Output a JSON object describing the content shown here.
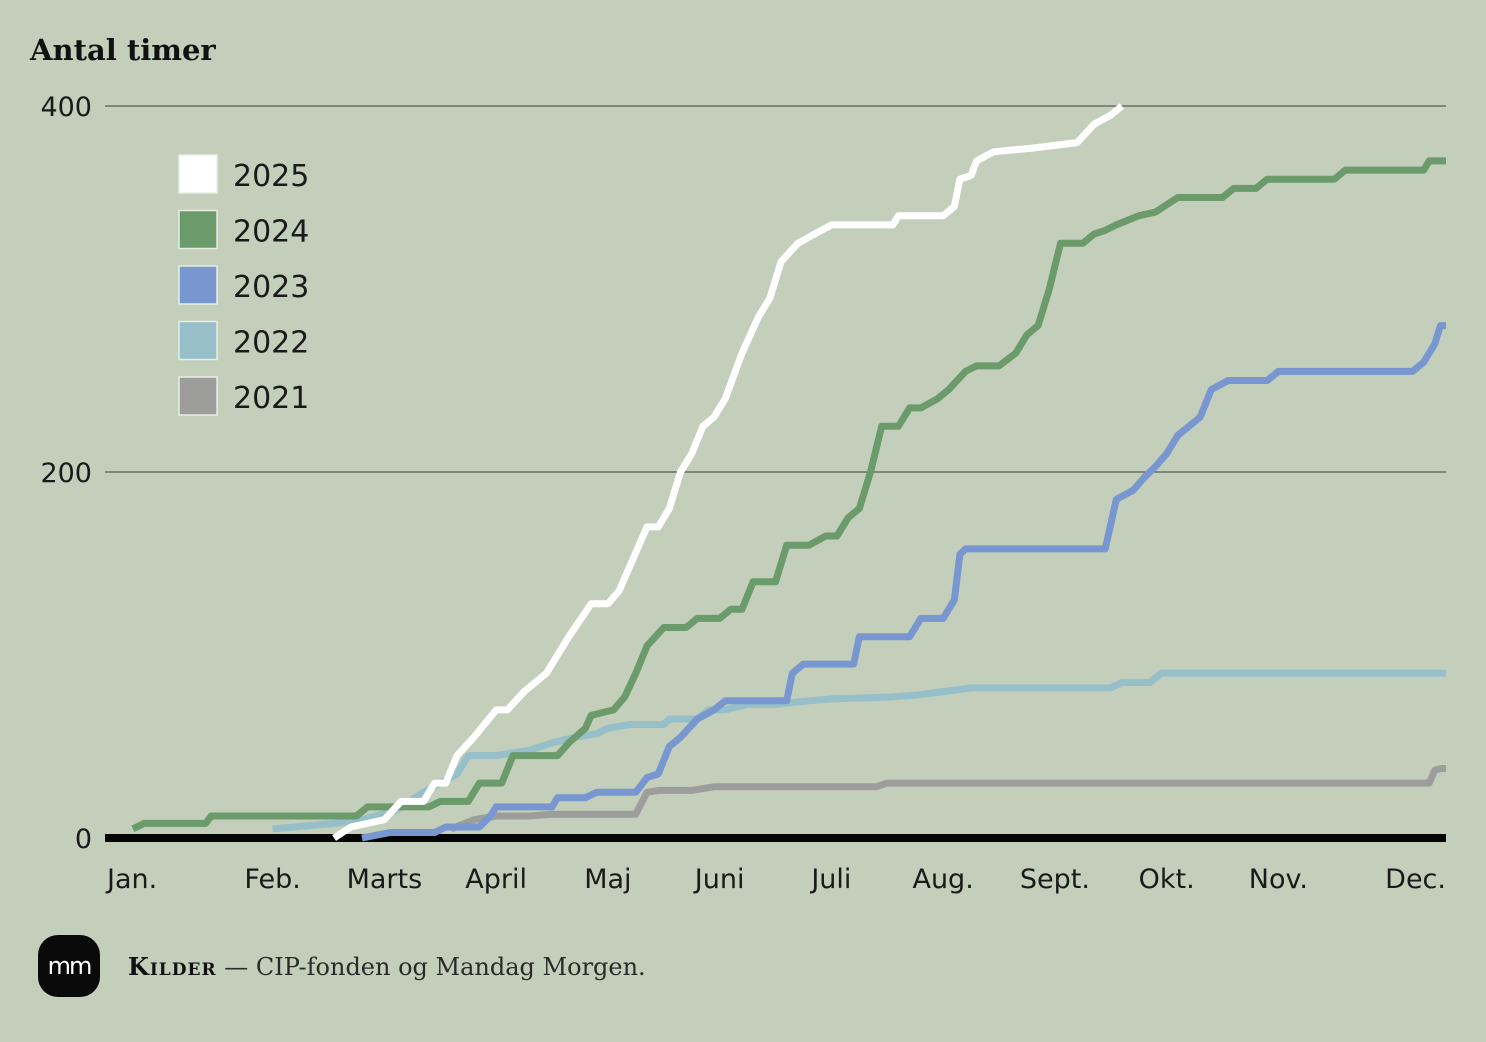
{
  "chart_data": {
    "type": "line",
    "ylabel": "Antal timer",
    "ylim": [
      0,
      400
    ],
    "yticks": [
      0,
      200,
      400
    ],
    "xlim": [
      0,
      12
    ],
    "month_labels": [
      "Jan.",
      "Feb.",
      "Marts",
      "April",
      "Maj",
      "Juni",
      "Juli",
      "Aug.",
      "Sept.",
      "Okt.",
      "Nov.",
      "Dec."
    ],
    "grid": true,
    "legend_position": "top-left",
    "series": [
      {
        "name": "2025",
        "color": "#ffffff",
        "points": [
          [
            2.05,
            0
          ],
          [
            2.2,
            6
          ],
          [
            2.5,
            10
          ],
          [
            2.65,
            20
          ],
          [
            2.85,
            20
          ],
          [
            2.95,
            30
          ],
          [
            3.05,
            30
          ],
          [
            3.15,
            45
          ],
          [
            3.3,
            55
          ],
          [
            3.5,
            70
          ],
          [
            3.6,
            70
          ],
          [
            3.75,
            80
          ],
          [
            3.95,
            90
          ],
          [
            4.15,
            110
          ],
          [
            4.35,
            128
          ],
          [
            4.5,
            128
          ],
          [
            4.6,
            135
          ],
          [
            4.85,
            170
          ],
          [
            4.95,
            170
          ],
          [
            5.05,
            180
          ],
          [
            5.15,
            200
          ],
          [
            5.25,
            210
          ],
          [
            5.35,
            225
          ],
          [
            5.45,
            230
          ],
          [
            5.55,
            240
          ],
          [
            5.7,
            265
          ],
          [
            5.85,
            285
          ],
          [
            5.95,
            295
          ],
          [
            6.05,
            315
          ],
          [
            6.2,
            325
          ],
          [
            6.35,
            330
          ],
          [
            6.5,
            335
          ],
          [
            7.05,
            335
          ],
          [
            7.1,
            340
          ],
          [
            7.5,
            340
          ],
          [
            7.6,
            345
          ],
          [
            7.65,
            360
          ],
          [
            7.75,
            362
          ],
          [
            7.8,
            370
          ],
          [
            7.95,
            375
          ],
          [
            8.3,
            377
          ],
          [
            8.7,
            380
          ],
          [
            8.85,
            390
          ],
          [
            9.0,
            395
          ],
          [
            9.1,
            400
          ]
        ]
      },
      {
        "name": "2024",
        "color": "#6b9a6b",
        "points": [
          [
            0.25,
            5
          ],
          [
            0.35,
            8
          ],
          [
            0.9,
            8
          ],
          [
            0.95,
            12
          ],
          [
            2.25,
            12
          ],
          [
            2.35,
            17
          ],
          [
            2.9,
            17
          ],
          [
            3.0,
            20
          ],
          [
            3.25,
            20
          ],
          [
            3.35,
            30
          ],
          [
            3.55,
            30
          ],
          [
            3.65,
            45
          ],
          [
            4.05,
            45
          ],
          [
            4.15,
            52
          ],
          [
            4.3,
            60
          ],
          [
            4.35,
            67
          ],
          [
            4.55,
            70
          ],
          [
            4.65,
            77
          ],
          [
            4.75,
            90
          ],
          [
            4.85,
            105
          ],
          [
            5.0,
            115
          ],
          [
            5.2,
            115
          ],
          [
            5.3,
            120
          ],
          [
            5.5,
            120
          ],
          [
            5.6,
            125
          ],
          [
            5.7,
            125
          ],
          [
            5.8,
            140
          ],
          [
            6.0,
            140
          ],
          [
            6.1,
            160
          ],
          [
            6.3,
            160
          ],
          [
            6.45,
            165
          ],
          [
            6.55,
            165
          ],
          [
            6.65,
            175
          ],
          [
            6.75,
            180
          ],
          [
            6.85,
            200
          ],
          [
            6.95,
            225
          ],
          [
            7.1,
            225
          ],
          [
            7.2,
            235
          ],
          [
            7.3,
            235
          ],
          [
            7.45,
            240
          ],
          [
            7.55,
            245
          ],
          [
            7.7,
            255
          ],
          [
            7.8,
            258
          ],
          [
            8.0,
            258
          ],
          [
            8.15,
            265
          ],
          [
            8.25,
            275
          ],
          [
            8.35,
            280
          ],
          [
            8.45,
            300
          ],
          [
            8.55,
            325
          ],
          [
            8.75,
            325
          ],
          [
            8.85,
            330
          ],
          [
            8.95,
            332
          ],
          [
            9.05,
            335
          ],
          [
            9.25,
            340
          ],
          [
            9.4,
            342
          ],
          [
            9.6,
            350
          ],
          [
            10.0,
            350
          ],
          [
            10.1,
            355
          ],
          [
            10.3,
            355
          ],
          [
            10.4,
            360
          ],
          [
            11.0,
            360
          ],
          [
            11.1,
            365
          ],
          [
            11.8,
            365
          ],
          [
            11.85,
            370
          ],
          [
            12.0,
            370
          ]
        ]
      },
      {
        "name": "2023",
        "color": "#7896d0",
        "points": [
          [
            2.3,
            0
          ],
          [
            2.55,
            3
          ],
          [
            2.95,
            3
          ],
          [
            3.05,
            6
          ],
          [
            3.35,
            6
          ],
          [
            3.45,
            12
          ],
          [
            3.5,
            17
          ],
          [
            4.0,
            17
          ],
          [
            4.05,
            22
          ],
          [
            4.3,
            22
          ],
          [
            4.4,
            25
          ],
          [
            4.75,
            25
          ],
          [
            4.85,
            33
          ],
          [
            4.95,
            35
          ],
          [
            5.05,
            50
          ],
          [
            5.15,
            55
          ],
          [
            5.3,
            65
          ],
          [
            5.45,
            70
          ],
          [
            5.55,
            75
          ],
          [
            6.1,
            75
          ],
          [
            6.15,
            90
          ],
          [
            6.25,
            95
          ],
          [
            6.7,
            95
          ],
          [
            6.75,
            110
          ],
          [
            7.0,
            110
          ],
          [
            7.2,
            110
          ],
          [
            7.3,
            120
          ],
          [
            7.5,
            120
          ],
          [
            7.6,
            130
          ],
          [
            7.65,
            155
          ],
          [
            7.7,
            158
          ],
          [
            8.4,
            158
          ],
          [
            8.5,
            158
          ],
          [
            8.95,
            158
          ],
          [
            9.05,
            185
          ],
          [
            9.2,
            190
          ],
          [
            9.3,
            197
          ],
          [
            9.4,
            203
          ],
          [
            9.5,
            210
          ],
          [
            9.6,
            220
          ],
          [
            9.7,
            225
          ],
          [
            9.8,
            230
          ],
          [
            9.9,
            245
          ],
          [
            10.05,
            250
          ],
          [
            10.4,
            250
          ],
          [
            10.5,
            255
          ],
          [
            11.7,
            255
          ],
          [
            11.8,
            260
          ],
          [
            11.85,
            265
          ],
          [
            11.9,
            270
          ],
          [
            11.95,
            280
          ],
          [
            12.0,
            280
          ]
        ]
      },
      {
        "name": "2022",
        "color": "#96bfc9",
        "points": [
          [
            1.5,
            5
          ],
          [
            2.05,
            8
          ],
          [
            2.3,
            10
          ],
          [
            2.6,
            15
          ],
          [
            2.85,
            25
          ],
          [
            3.0,
            30
          ],
          [
            3.15,
            35
          ],
          [
            3.25,
            45
          ],
          [
            3.5,
            45
          ],
          [
            3.8,
            48
          ],
          [
            4.0,
            52
          ],
          [
            4.2,
            55
          ],
          [
            4.4,
            57
          ],
          [
            4.5,
            60
          ],
          [
            4.7,
            62
          ],
          [
            5.0,
            62
          ],
          [
            5.05,
            65
          ],
          [
            5.3,
            65
          ],
          [
            5.4,
            70
          ],
          [
            5.55,
            70
          ],
          [
            5.75,
            73
          ],
          [
            6.0,
            73
          ],
          [
            6.3,
            75
          ],
          [
            6.5,
            76
          ],
          [
            7.0,
            77
          ],
          [
            7.25,
            78
          ],
          [
            7.5,
            80
          ],
          [
            7.75,
            82
          ],
          [
            8.0,
            82
          ],
          [
            9.0,
            82
          ],
          [
            9.1,
            85
          ],
          [
            9.35,
            85
          ],
          [
            9.45,
            90
          ],
          [
            10.0,
            90
          ],
          [
            11.0,
            90
          ],
          [
            12.0,
            90
          ]
        ]
      },
      {
        "name": "2021",
        "color": "#9d9e9c",
        "points": [
          [
            3.1,
            5
          ],
          [
            3.3,
            10
          ],
          [
            3.5,
            12
          ],
          [
            3.8,
            12
          ],
          [
            4.0,
            13
          ],
          [
            4.3,
            13
          ],
          [
            4.6,
            13
          ],
          [
            4.75,
            13
          ],
          [
            4.85,
            25
          ],
          [
            4.95,
            26
          ],
          [
            5.25,
            26
          ],
          [
            5.45,
            28
          ],
          [
            6.5,
            28
          ],
          [
            6.9,
            28
          ],
          [
            7.0,
            30
          ],
          [
            8.0,
            30
          ],
          [
            9.0,
            30
          ],
          [
            10.0,
            30
          ],
          [
            11.0,
            30
          ],
          [
            11.85,
            30
          ],
          [
            11.9,
            37
          ],
          [
            11.95,
            38
          ],
          [
            12.0,
            38
          ]
        ]
      }
    ]
  },
  "footer": {
    "logo_text": "mm",
    "source_label": "Kilder",
    "source_text": "— CIP-fonden og Mandag Morgen."
  }
}
